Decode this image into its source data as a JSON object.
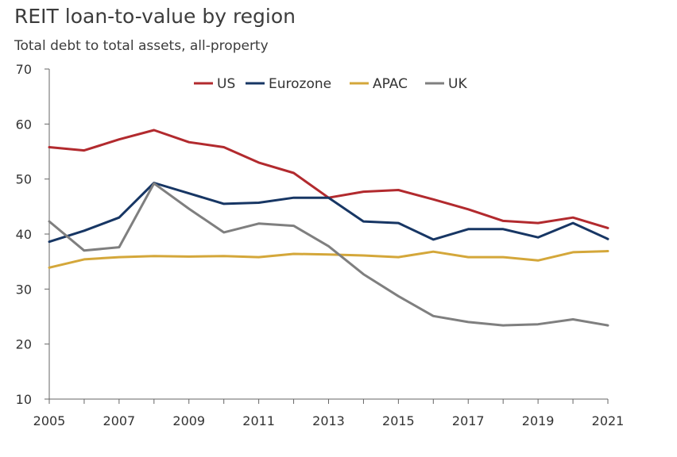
{
  "title": "REIT loan-to-value by region",
  "subtitle": "Total debt to total assets, all-property",
  "chart_data": {
    "type": "line",
    "title": "REIT loan-to-value by region",
    "subtitle": "Total debt to total assets, all-property",
    "xlabel": "",
    "ylabel": "",
    "x": [
      2005,
      2006,
      2007,
      2008,
      2009,
      2010,
      2011,
      2012,
      2013,
      2014,
      2015,
      2016,
      2017,
      2018,
      2019,
      2020,
      2021
    ],
    "x_tick_labels": [
      "2005",
      "2007",
      "2009",
      "2011",
      "2013",
      "2015",
      "2017",
      "2019",
      "2021"
    ],
    "y_tick_labels": [
      "10",
      "20",
      "30",
      "40",
      "50",
      "60",
      "70"
    ],
    "xlim": [
      2005,
      2021
    ],
    "ylim": [
      10,
      70
    ],
    "grid": false,
    "legend_position": "top-center",
    "series": [
      {
        "name": "US",
        "color": "#b22a2e",
        "values": [
          55.8,
          55.2,
          57.2,
          58.9,
          56.7,
          55.8,
          53.0,
          51.1,
          46.6,
          47.7,
          48.0,
          46.3,
          44.5,
          42.4,
          42.0,
          43.0,
          41.1
        ]
      },
      {
        "name": "Eurozone",
        "color": "#173664",
        "values": [
          38.6,
          40.6,
          43.0,
          49.3,
          47.4,
          45.5,
          45.7,
          46.6,
          46.6,
          42.3,
          42.0,
          39.0,
          40.9,
          40.9,
          39.4,
          42.0,
          39.1
        ]
      },
      {
        "name": "APAC",
        "color": "#d4a73a",
        "values": [
          33.9,
          35.4,
          35.8,
          36.0,
          35.9,
          36.0,
          35.8,
          36.4,
          36.3,
          36.1,
          35.8,
          36.8,
          35.8,
          35.8,
          35.2,
          36.7,
          36.9
        ]
      },
      {
        "name": "UK",
        "color": "#7f7f7f",
        "values": [
          42.3,
          37.0,
          37.6,
          49.2,
          44.6,
          40.3,
          41.9,
          41.5,
          37.8,
          32.7,
          28.7,
          25.1,
          24.0,
          23.4,
          23.6,
          24.5,
          23.4
        ]
      }
    ]
  }
}
